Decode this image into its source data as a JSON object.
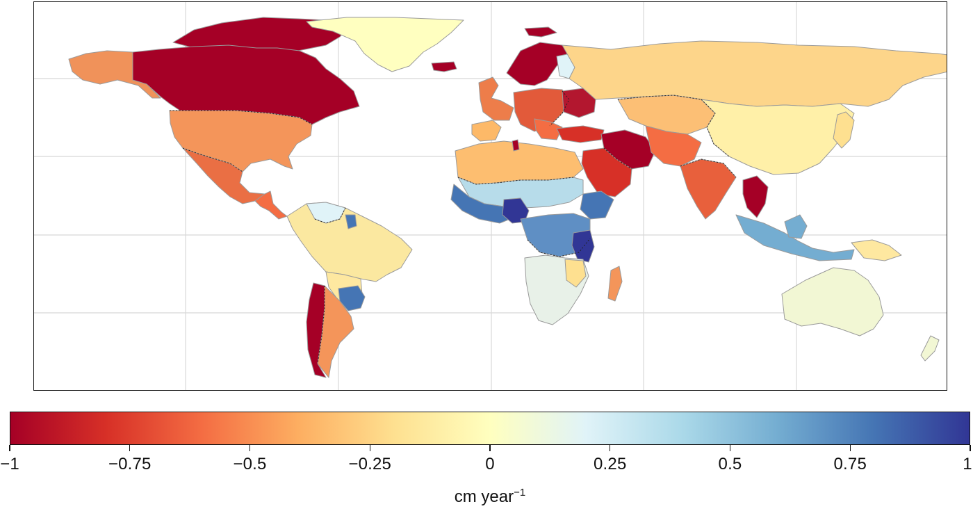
{
  "map": {
    "projection": "equirectangular",
    "lon_range": [
      -180,
      180
    ],
    "lat_range": [
      -60,
      85
    ],
    "gridlines": {
      "meridians_deg": [
        -120,
        -60,
        0,
        60,
        120
      ],
      "parallels_deg": [
        -30,
        0,
        30,
        60
      ]
    },
    "border_style": "dotted",
    "scale": {
      "min": -1,
      "max": 1,
      "colormap": "RdYlBu"
    }
  },
  "colorbar": {
    "ticks": [
      {
        "value": -1,
        "label": "−1"
      },
      {
        "value": -0.75,
        "label": "−0.75"
      },
      {
        "value": -0.5,
        "label": "−0.5"
      },
      {
        "value": -0.25,
        "label": "−0.25"
      },
      {
        "value": 0,
        "label": "0"
      },
      {
        "value": 0.25,
        "label": "0.25"
      },
      {
        "value": 0.5,
        "label": "0.5"
      },
      {
        "value": 0.75,
        "label": "0.75"
      },
      {
        "value": 1,
        "label": "1"
      }
    ],
    "unit_base": "cm year",
    "unit_exponent": "−1",
    "colors": [
      "#a50026",
      "#d73027",
      "#f46d43",
      "#fdae61",
      "#fee090",
      "#ffffbf",
      "#e0f3f8",
      "#abd9e9",
      "#74add1",
      "#4575b4",
      "#313695"
    ]
  }
}
